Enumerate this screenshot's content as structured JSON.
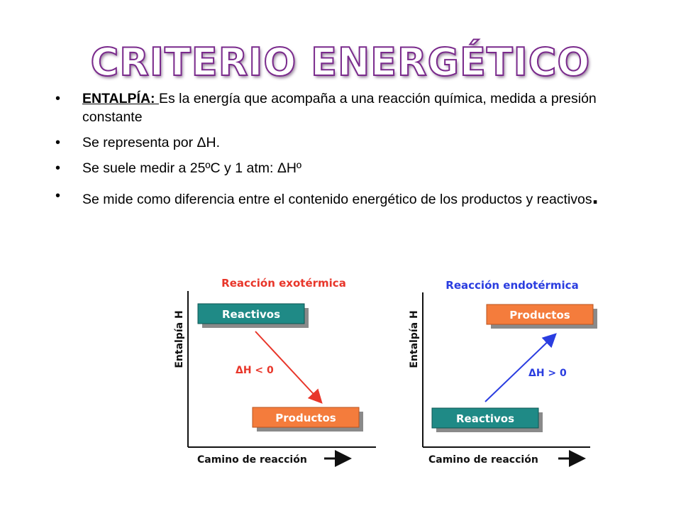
{
  "slide": {
    "title": "CRITERIO ENERGÉTICO",
    "bullets": [
      {
        "lead": "ENTALPÍA:",
        "text": "Es la energía que acompaña a una reacción química, medida a presión constante"
      },
      {
        "text": "Se representa por ΔH."
      },
      {
        "text": "Se suele medir a 25ºC y 1 atm: ΔHº"
      },
      {
        "text": "Se mide como diferencia entre el contenido energético de los productos y reactivos",
        "end_mark": "."
      }
    ]
  },
  "diagrams": {
    "exo": {
      "title": "Reacción exotérmica",
      "ylabel": "Entalpía H",
      "xlabel": "Camino de reacción",
      "top_box": "Reactivos",
      "bottom_box": "Productos",
      "delta": "ΔH < 0",
      "title_color": "#e8362a",
      "arrow_color": "#e8362a"
    },
    "endo": {
      "title": "Reacción endotérmica",
      "ylabel": "Entalpía H",
      "xlabel": "Camino de reacción",
      "top_box": "Productos",
      "bottom_box": "Reactivos",
      "delta": "ΔH > 0",
      "title_color": "#2a3de0",
      "arrow_color": "#2a3de0"
    },
    "colors": {
      "reactivos": "#1f8a86",
      "productos": "#f47c3c",
      "shadow": "#8a8a8a"
    }
  }
}
